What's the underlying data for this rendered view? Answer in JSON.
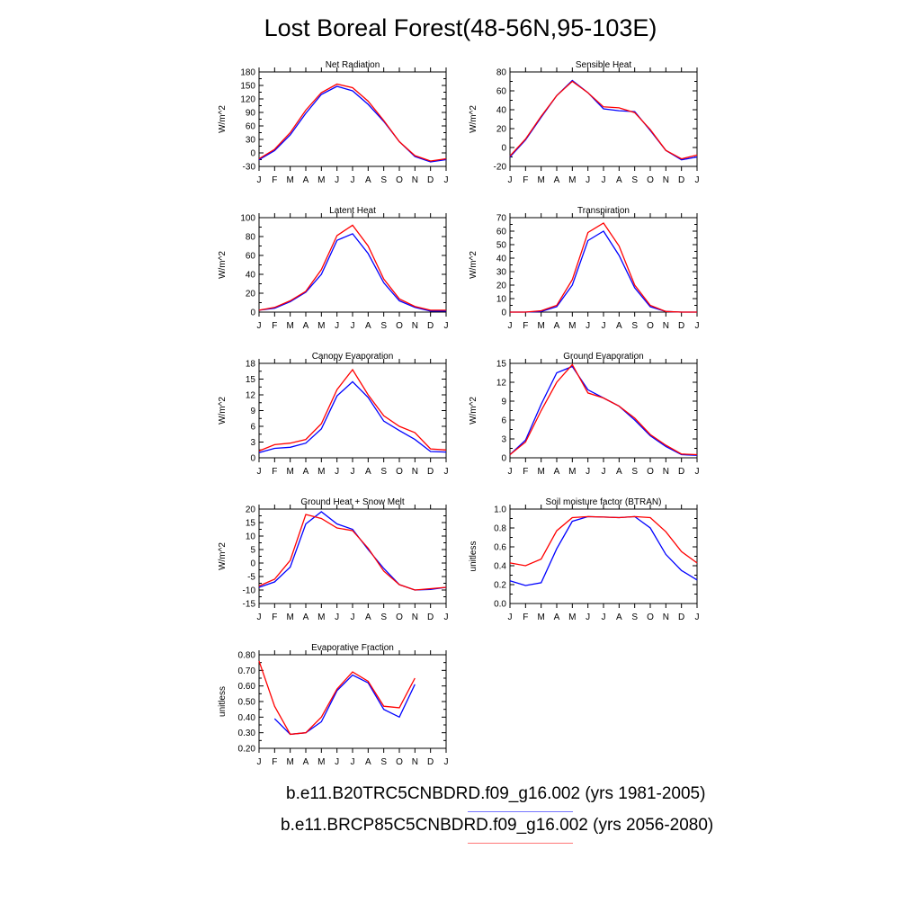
{
  "figure": {
    "title": "Lost Boreal Forest(48-56N,95-103E)",
    "legend": [
      {
        "label": "b.e11.B20TRC5CNBDRD.f09_g16.002 (yrs 1981-2005)",
        "color": "#0000ff"
      },
      {
        "label": "b.e11.BRCP85C5CNBDRD.f09_g16.002 (yrs 2056-2080)",
        "color": "#ff0000"
      }
    ]
  },
  "chart_data": [
    {
      "type": "line",
      "title": "Net Radiation",
      "ylabel": "W/m^2",
      "categories": [
        "J",
        "F",
        "M",
        "A",
        "M",
        "J",
        "J",
        "A",
        "S",
        "O",
        "N",
        "D",
        "J"
      ],
      "yticks": [
        "180",
        "150",
        "120",
        "90",
        "60",
        "30",
        "0",
        "-30"
      ],
      "ylim": [
        -30,
        180
      ],
      "series": [
        {
          "color": "#0000ff",
          "values": [
            -15,
            5,
            40,
            88,
            130,
            148,
            138,
            108,
            70,
            25,
            -8,
            -20,
            -15
          ]
        },
        {
          "color": "#ff0000",
          "values": [
            -13,
            8,
            45,
            95,
            134,
            153,
            145,
            115,
            72,
            25,
            -6,
            -18,
            -13
          ]
        }
      ]
    },
    {
      "type": "line",
      "title": "Sensible Heat",
      "ylabel": "W/m^2",
      "categories": [
        "J",
        "F",
        "M",
        "A",
        "M",
        "J",
        "J",
        "A",
        "S",
        "O",
        "N",
        "D",
        "J"
      ],
      "yticks": [
        "80",
        "60",
        "40",
        "20",
        "0",
        "-20"
      ],
      "ylim": [
        -20,
        80
      ],
      "series": [
        {
          "color": "#0000ff",
          "values": [
            -10,
            8,
            32,
            55,
            71,
            58,
            41,
            39,
            38,
            18,
            -3,
            -13,
            -10
          ]
        },
        {
          "color": "#ff0000",
          "values": [
            -9,
            9,
            33,
            55,
            70,
            58,
            43,
            42,
            37,
            19,
            -3,
            -12,
            -8
          ]
        }
      ]
    },
    {
      "type": "line",
      "title": "Latent Heat",
      "ylabel": "W/m^2",
      "categories": [
        "J",
        "F",
        "M",
        "A",
        "M",
        "J",
        "J",
        "A",
        "S",
        "O",
        "N",
        "D",
        "J"
      ],
      "yticks": [
        "100",
        "80",
        "60",
        "40",
        "20",
        "0"
      ],
      "ylim": [
        0,
        100
      ],
      "series": [
        {
          "color": "#0000ff",
          "values": [
            2,
            4,
            11,
            21,
            40,
            76,
            83,
            62,
            31,
            12,
            5,
            1,
            1
          ]
        },
        {
          "color": "#ff0000",
          "values": [
            2,
            5,
            12,
            22,
            45,
            81,
            92,
            70,
            35,
            14,
            6,
            2,
            2
          ]
        }
      ]
    },
    {
      "type": "line",
      "title": "Transpiration",
      "ylabel": "W/m^2",
      "categories": [
        "J",
        "F",
        "M",
        "A",
        "M",
        "J",
        "J",
        "A",
        "S",
        "O",
        "N",
        "D",
        "J"
      ],
      "yticks": [
        "70",
        "60",
        "50",
        "40",
        "30",
        "20",
        "10",
        "0"
      ],
      "ylim": [
        0,
        70
      ],
      "series": [
        {
          "color": "#0000ff",
          "values": [
            0,
            0,
            0.5,
            4,
            20,
            53,
            60,
            42,
            18,
            4,
            0.5,
            0,
            0
          ]
        },
        {
          "color": "#ff0000",
          "values": [
            0,
            0,
            1,
            5,
            24,
            59,
            66,
            49,
            20,
            5,
            0.5,
            0,
            0
          ]
        }
      ]
    },
    {
      "type": "line",
      "title": "Canopy Evaporation",
      "ylabel": "W/m^2",
      "categories": [
        "J",
        "F",
        "M",
        "A",
        "M",
        "J",
        "J",
        "A",
        "S",
        "O",
        "N",
        "D",
        "J"
      ],
      "yticks": [
        "18",
        "15",
        "12",
        "9",
        "6",
        "3",
        "0"
      ],
      "ylim": [
        0,
        18
      ],
      "series": [
        {
          "color": "#0000ff",
          "values": [
            1,
            1.8,
            2,
            2.8,
            5.5,
            11.8,
            14.5,
            11.5,
            7,
            5.2,
            3.5,
            1.2,
            1.1
          ]
        },
        {
          "color": "#ff0000",
          "values": [
            1.3,
            2.5,
            2.8,
            3.5,
            6.5,
            13,
            16.8,
            12,
            8,
            6,
            4.8,
            1.7,
            1.5
          ]
        }
      ]
    },
    {
      "type": "line",
      "title": "Ground Evaporation",
      "ylabel": "W/m^2",
      "categories": [
        "J",
        "F",
        "M",
        "A",
        "M",
        "J",
        "J",
        "A",
        "S",
        "O",
        "N",
        "D",
        "J"
      ],
      "yticks": [
        "15",
        "12",
        "9",
        "6",
        "3",
        "0"
      ],
      "ylim": [
        0,
        15
      ],
      "series": [
        {
          "color": "#0000ff",
          "values": [
            0.5,
            2.8,
            8.5,
            13.5,
            14.5,
            10.8,
            9.5,
            8.2,
            6,
            3.5,
            1.8,
            0.5,
            0.4
          ]
        },
        {
          "color": "#ff0000",
          "values": [
            0.5,
            2.5,
            7.5,
            12,
            14.8,
            10.3,
            9.5,
            8.2,
            6.3,
            3.7,
            2,
            0.6,
            0.5
          ]
        }
      ]
    },
    {
      "type": "line",
      "title": "Ground Heat + Snow Melt",
      "ylabel": "W/m^2",
      "categories": [
        "J",
        "F",
        "M",
        "A",
        "M",
        "J",
        "J",
        "A",
        "S",
        "O",
        "N",
        "D",
        "J"
      ],
      "yticks": [
        "20",
        "15",
        "10",
        "5",
        "0",
        "-5",
        "-10",
        "-15"
      ],
      "ylim": [
        -15,
        20
      ],
      "series": [
        {
          "color": "#0000ff",
          "values": [
            -9,
            -7,
            -1.5,
            14.5,
            19,
            14.5,
            12.5,
            5,
            -2,
            -8,
            -10,
            -9.8,
            -9
          ]
        },
        {
          "color": "#ff0000",
          "values": [
            -8.5,
            -6,
            1,
            18,
            16.5,
            13,
            12,
            5.5,
            -3,
            -8,
            -10,
            -9.5,
            -9
          ]
        }
      ]
    },
    {
      "type": "line",
      "title": "Soil moisture factor (BTRAN)",
      "ylabel": "unitless",
      "categories": [
        "J",
        "F",
        "M",
        "A",
        "M",
        "J",
        "J",
        "A",
        "S",
        "O",
        "N",
        "D",
        "J"
      ],
      "yticks": [
        "1.0",
        "0.8",
        "0.6",
        "0.4",
        "0.2",
        "0.0"
      ],
      "ylim": [
        0,
        1
      ],
      "series": [
        {
          "color": "#0000ff",
          "values": [
            0.24,
            0.19,
            0.22,
            0.58,
            0.87,
            0.92,
            0.915,
            0.91,
            0.92,
            0.8,
            0.52,
            0.35,
            0.25
          ]
        },
        {
          "color": "#ff0000",
          "values": [
            0.43,
            0.4,
            0.47,
            0.77,
            0.91,
            0.92,
            0.915,
            0.91,
            0.92,
            0.91,
            0.76,
            0.55,
            0.43
          ]
        }
      ]
    },
    {
      "type": "line",
      "title": "Evaporative Fraction",
      "ylabel": "unitless",
      "categories": [
        "J",
        "F",
        "M",
        "A",
        "M",
        "J",
        "J",
        "A",
        "S",
        "O",
        "N",
        "D",
        "J"
      ],
      "yticks": [
        "0.80",
        "0.70",
        "0.60",
        "0.50",
        "0.40",
        "0.30",
        "0.20"
      ],
      "ylim": [
        0.2,
        0.8
      ],
      "series": [
        {
          "color": "#0000ff",
          "values": [
            null,
            0.39,
            0.29,
            0.3,
            0.37,
            0.57,
            0.67,
            0.62,
            0.45,
            0.4,
            0.61,
            null,
            null
          ]
        },
        {
          "color": "#ff0000",
          "values": [
            0.76,
            0.47,
            0.29,
            0.3,
            0.4,
            0.58,
            0.69,
            0.63,
            0.47,
            0.46,
            0.65,
            null,
            null
          ]
        }
      ]
    }
  ]
}
